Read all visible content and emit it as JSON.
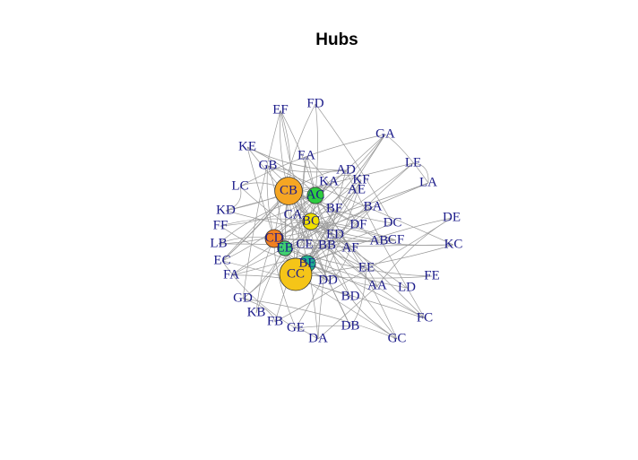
{
  "header": {
    "title": "Hubs"
  },
  "nodes": [
    {
      "label": "EF"
    },
    {
      "label": "FD"
    },
    {
      "label": "KE"
    },
    {
      "label": "EA"
    },
    {
      "label": "GA"
    },
    {
      "label": "GB"
    },
    {
      "label": "AD"
    },
    {
      "label": "KF"
    },
    {
      "label": "LE"
    },
    {
      "label": "KA"
    },
    {
      "label": "AE"
    },
    {
      "label": "LA"
    },
    {
      "label": "LC"
    },
    {
      "label": "CB",
      "color": "#f5a623",
      "score": 0.7
    },
    {
      "label": "AC",
      "color": "#2ecc40",
      "score": 0.2
    },
    {
      "label": "BF"
    },
    {
      "label": "BA"
    },
    {
      "label": "KD"
    },
    {
      "label": "CA"
    },
    {
      "label": "BC",
      "color": "#f0e000",
      "score": 0.2
    },
    {
      "label": "DF"
    },
    {
      "label": "DC"
    },
    {
      "label": "DE"
    },
    {
      "label": "FF"
    },
    {
      "label": "ED"
    },
    {
      "label": "CD",
      "color": "#f08020",
      "score": 0.25
    },
    {
      "label": "LB"
    },
    {
      "label": "CE"
    },
    {
      "label": "BB"
    },
    {
      "label": "AF"
    },
    {
      "label": "AB"
    },
    {
      "label": "CF"
    },
    {
      "label": "KC"
    },
    {
      "label": "EB",
      "color": "#40d070",
      "score": 0.15
    },
    {
      "label": "EC"
    },
    {
      "label": "FA"
    },
    {
      "label": "BE",
      "color": "#20b090",
      "score": 0.2
    },
    {
      "label": "EE"
    },
    {
      "label": "CC",
      "color": "#f5c518",
      "score": 1
    },
    {
      "label": "DD"
    },
    {
      "label": "FE"
    },
    {
      "label": "AA"
    },
    {
      "label": "LD"
    },
    {
      "label": "GD"
    },
    {
      "label": "BD"
    },
    {
      "label": "KB"
    },
    {
      "label": "FB"
    },
    {
      "label": "GE"
    },
    {
      "label": "DB"
    },
    {
      "label": "DA"
    },
    {
      "label": "FC"
    },
    {
      "label": "GC"
    }
  ]
}
